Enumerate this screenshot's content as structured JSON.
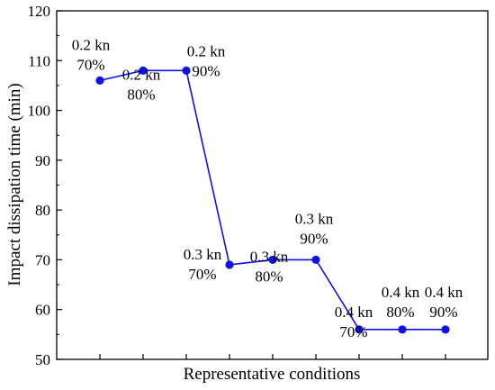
{
  "chart_data": {
    "type": "line",
    "title": "",
    "xlabel": "Representative conditions",
    "ylabel": "Impact dissipation time (min)",
    "ylim": [
      50,
      120
    ],
    "yticks": [
      50,
      60,
      70,
      80,
      90,
      100,
      110,
      120
    ],
    "grid": false,
    "legend": "none",
    "series_color": "#1010e8",
    "x": [
      1,
      2,
      3,
      4,
      5,
      6,
      7,
      8,
      9
    ],
    "values": [
      106,
      108,
      108,
      69,
      70,
      70,
      56,
      56,
      56
    ],
    "labels": [
      {
        "line1": "0.2 kn",
        "line2": "70%"
      },
      {
        "line1": "0.2 kn",
        "line2": "80%"
      },
      {
        "line1": "0.2 kn",
        "line2": "90%"
      },
      {
        "line1": "0.3 kn",
        "line2": "70%"
      },
      {
        "line1": "0.3 kn",
        "line2": "80%"
      },
      {
        "line1": "0.3 kn",
        "line2": "90%"
      },
      {
        "line1": "0.4 kn",
        "line2": "70%"
      },
      {
        "line1": "0.4 kn",
        "line2": "80%"
      },
      {
        "line1": "0.4 kn",
        "line2": "90%"
      }
    ]
  }
}
